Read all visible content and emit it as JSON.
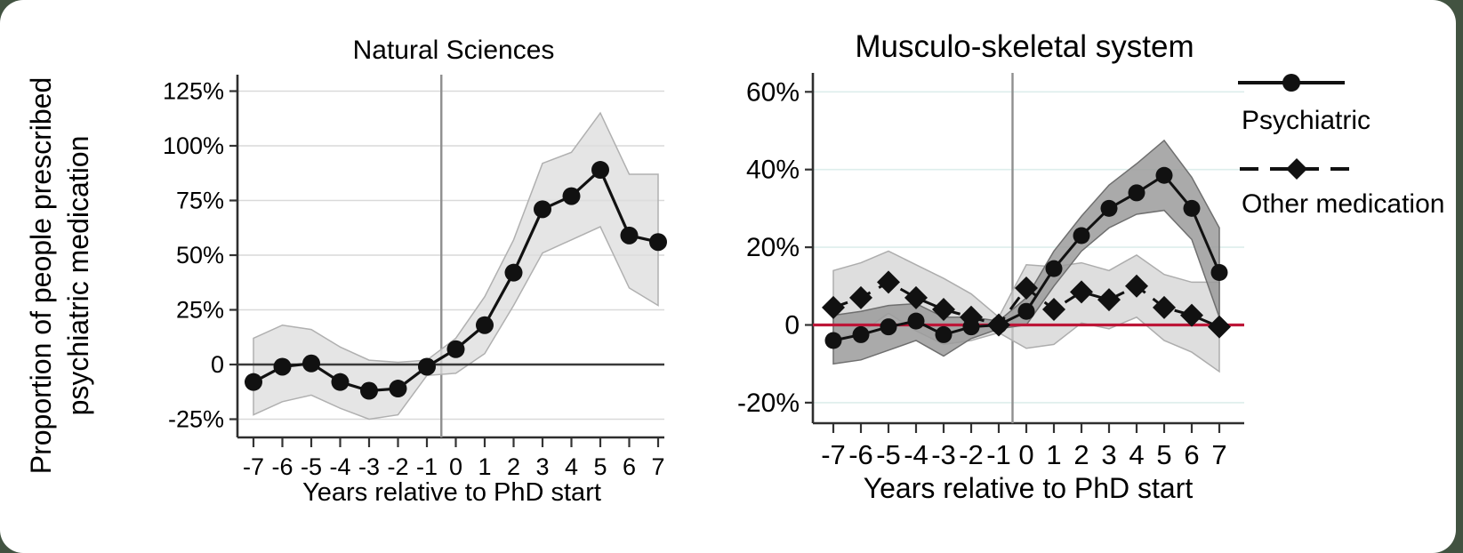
{
  "frame": {
    "background_color": "#425341",
    "card_color": "#ffffff"
  },
  "ylabel": {
    "line1": "Proportion of people prescribed",
    "line2": "psychiatric medication"
  },
  "legend": {
    "items": [
      {
        "label": "Psychiatric",
        "line_style": "solid",
        "marker": "circle"
      },
      {
        "label": "Other medication",
        "line_style": "dashed",
        "marker": "diamond"
      }
    ]
  },
  "chart_data": [
    {
      "type": "line",
      "title": "Natural Sciences",
      "title_color": "#1a1a1a",
      "xlabel": "Years relative to PhD start",
      "x": [
        -7,
        -6,
        -5,
        -4,
        -3,
        -2,
        -1,
        0,
        1,
        2,
        3,
        4,
        5,
        6,
        7
      ],
      "xtick_labels": [
        "-7",
        "-6",
        "-5",
        "-4",
        "-3",
        "-2",
        "-1",
        "0",
        "1",
        "2",
        "3",
        "4",
        "5",
        "6",
        "7"
      ],
      "yticks": [
        {
          "value": 125,
          "label": "125%"
        },
        {
          "value": 100,
          "label": "100%"
        },
        {
          "value": 75,
          "label": "75%"
        },
        {
          "value": 50,
          "label": "50%"
        },
        {
          "value": 25,
          "label": "25%"
        },
        {
          "value": 0,
          "label": "0"
        },
        {
          "value": -25,
          "label": "-25%"
        }
      ],
      "ylim": [
        -32,
        133
      ],
      "grid_on": true,
      "grid_color": "#d9d9d9",
      "event_line_x": -0.5,
      "event_line_color": "#8f8f8f",
      "zero_line": {
        "value": 0,
        "color": "#3a3a3a"
      },
      "series": [
        {
          "name": "Psychiatric",
          "line_style": "solid",
          "marker": "circle",
          "color": "#111111",
          "band_color": "#dcdcdc",
          "band_edge_color": "#b0b0b0",
          "band_opacity": 0.75,
          "values": [
            -8,
            -1,
            0.5,
            -8,
            -12,
            -11,
            -1,
            7,
            18,
            42,
            71,
            77,
            89,
            59,
            56
          ],
          "band_upper": [
            12,
            18,
            16,
            8,
            2,
            1,
            2,
            12,
            31,
            57,
            92,
            97,
            115,
            87,
            87
          ],
          "band_lower": [
            -23,
            -17,
            -14,
            -20,
            -25,
            -23,
            -5,
            -4,
            5,
            27,
            51,
            57,
            63,
            35,
            27
          ]
        }
      ]
    },
    {
      "type": "line",
      "title": "Musculo-skeletal system",
      "title_color": "#1f3c6d",
      "xlabel": "Years relative to PhD start",
      "x": [
        -7,
        -6,
        -5,
        -4,
        -3,
        -2,
        -1,
        0,
        1,
        2,
        3,
        4,
        5,
        6,
        7
      ],
      "xtick_labels": [
        "-7",
        "-6",
        "-5",
        "-4",
        "-3",
        "-2",
        "-1",
        "0",
        "1",
        "2",
        "3",
        "4",
        "5",
        "6",
        "7"
      ],
      "yticks": [
        {
          "value": 60,
          "label": "60%"
        },
        {
          "value": 40,
          "label": "40%"
        },
        {
          "value": 20,
          "label": "20%"
        },
        {
          "value": 0,
          "label": "0"
        },
        {
          "value": -20,
          "label": "-20%"
        }
      ],
      "ylim": [
        -27,
        64
      ],
      "grid_on": true,
      "grid_color": "#ddeeec",
      "event_line_x": -0.5,
      "event_line_color": "#8f8f8f",
      "zero_line": {
        "value": 0,
        "color": "#bd1638"
      },
      "series": [
        {
          "name": "Psychiatric",
          "line_style": "solid",
          "marker": "circle",
          "color": "#111111",
          "band_color": "#9b9b9b",
          "band_edge_color": "#6f6f6f",
          "band_opacity": 0.85,
          "values": [
            -4,
            -2.5,
            -0.5,
            1,
            -2.5,
            -0.5,
            0,
            3.5,
            14.5,
            23,
            30,
            34,
            38.5,
            30,
            13.5
          ],
          "band_upper": [
            2.5,
            3.5,
            5,
            5.5,
            2,
            2,
            1,
            7,
            19,
            28,
            36,
            41.5,
            47.5,
            38,
            25
          ],
          "band_lower": [
            -10,
            -9,
            -6.5,
            -4,
            -8,
            -3.5,
            -1,
            0,
            10,
            19,
            25,
            28.5,
            29.5,
            22,
            2
          ]
        },
        {
          "name": "Other medication",
          "line_style": "dashed",
          "marker": "diamond",
          "color": "#111111",
          "band_color": "#d0d0d0",
          "band_edge_color": "#adadad",
          "band_opacity": 0.7,
          "values": [
            4.5,
            7,
            11,
            7,
            4,
            2,
            0,
            9.5,
            4,
            8.5,
            6.5,
            10,
            4.5,
            2.5,
            -0.5
          ],
          "band_upper": [
            14,
            16,
            19,
            15.5,
            12,
            8,
            2,
            15.5,
            15,
            16,
            14,
            18,
            13,
            11,
            11
          ],
          "band_lower": [
            -3.5,
            -2,
            3,
            -1.5,
            -5,
            -4,
            -2,
            -6,
            -5,
            0.5,
            -1,
            2,
            -4,
            -7,
            -12
          ]
        }
      ]
    }
  ]
}
